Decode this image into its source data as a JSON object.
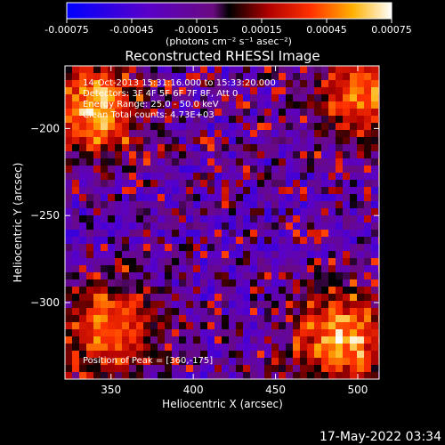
{
  "chart_data": {
    "type": "heatmap",
    "title": "Reconstructed RHESSI Image",
    "xlabel": "Heliocentric X (arcsec)",
    "ylabel": "Heliocentric Y (arcsec)",
    "x_ticks": [
      350,
      400,
      450,
      500
    ],
    "y_ticks": [
      -200,
      -250,
      -300
    ],
    "xlim": [
      322,
      513
    ],
    "ylim": [
      -344,
      -164
    ],
    "colorbar": {
      "ticks": [
        "-0.00075",
        "-0.00045",
        "-0.00015",
        "0.00015",
        "0.00045",
        "0.00075"
      ],
      "unit_label": "(photons cm⁻² s⁻¹ asec⁻²)",
      "range": [
        -0.00075,
        0.00075
      ]
    },
    "annotations": {
      "time_range": "14-Oct-2013 15:31:16.000 to 15:33:20.000",
      "detectors": "Detectors: 3F 4F 5F 6F 7F 8F, Att 0",
      "energy": "Energy Range: 25.0 - 50.0 keV",
      "method": "Clean  Total counts: 4.73E+03",
      "peak": "Position of Peak = [360,-175]"
    },
    "hot_regions": [
      {
        "x": 340,
        "y": -187,
        "level": 0.00075
      },
      {
        "x": 350,
        "y": -315,
        "level": 0.0006
      },
      {
        "x": 490,
        "y": -320,
        "level": 0.00075
      },
      {
        "x": 505,
        "y": -180,
        "level": 0.0006
      }
    ],
    "timestamp": "17-May-2022 03:34"
  }
}
